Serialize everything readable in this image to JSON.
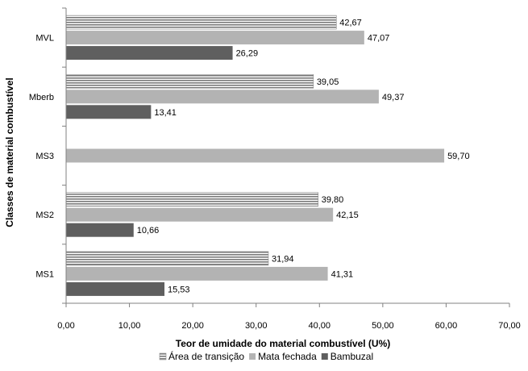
{
  "chart_data": {
    "type": "bar",
    "orientation": "horizontal",
    "categories": [
      "MVL",
      "Mberb",
      "MS3",
      "MS2",
      "MS1"
    ],
    "series": [
      {
        "name": "Área de transição",
        "values": [
          42.67,
          39.05,
          null,
          39.8,
          31.94
        ],
        "labels": [
          "42,67",
          "39,05",
          "",
          "39,80",
          "31,94"
        ],
        "color": "#8c8c8c",
        "pattern": "horizontal-stripes"
      },
      {
        "name": "Mata fechada",
        "values": [
          47.07,
          49.37,
          59.7,
          42.15,
          41.31
        ],
        "labels": [
          "47,07",
          "49,37",
          "59,70",
          "42,15",
          "41,31"
        ],
        "color": "#b3b3b3",
        "pattern": "solid"
      },
      {
        "name": "Bambuzal",
        "values": [
          26.29,
          13.41,
          null,
          10.66,
          15.53
        ],
        "labels": [
          "26,29",
          "13,41",
          "",
          "10,66",
          "15,53"
        ],
        "color": "#5f5f5f",
        "pattern": "solid"
      }
    ],
    "xlabel": "Teor de umidade do material combustível (U%)",
    "ylabel": "Classes de material combustível",
    "xlim": [
      0,
      70
    ],
    "xticks": [
      0,
      10,
      20,
      30,
      40,
      50,
      60,
      70
    ],
    "xtick_labels": [
      "0,00",
      "10,00",
      "20,00",
      "30,00",
      "40,00",
      "50,00",
      "60,00",
      "70,00"
    ],
    "grid": false,
    "legend_position": "bottom"
  }
}
